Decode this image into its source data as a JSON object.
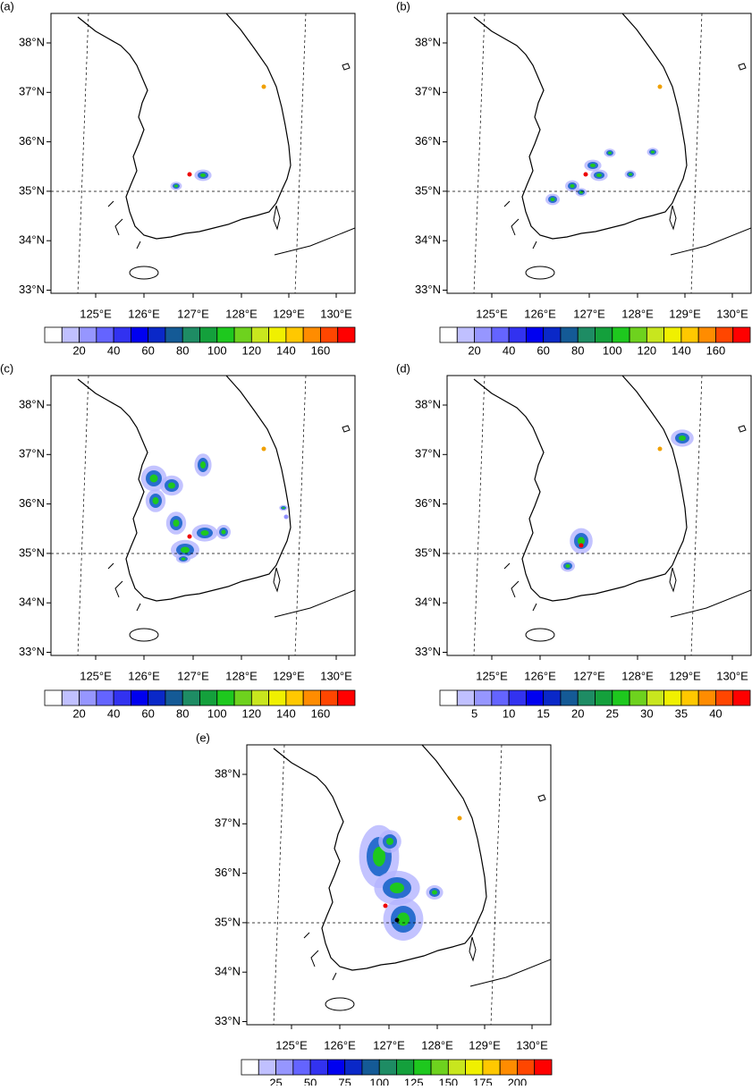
{
  "panels": [
    {
      "label": "(a)",
      "lat_labels": [
        "38°N",
        "37°N",
        "36°N",
        "35°N",
        "34°N",
        "33°N"
      ],
      "lon_labels": [
        "125°E",
        "126°E",
        "127°E",
        "128°E",
        "129°E",
        "130°E"
      ],
      "colorbar": {
        "ticks": [
          20,
          40,
          60,
          80,
          100,
          120,
          140,
          160
        ],
        "colors": [
          "#ffffff",
          "#c0c0ff",
          "#9696ff",
          "#6464ff",
          "#3232f0",
          "#0000f0",
          "#0a28c8",
          "#145a96",
          "#1e8c64",
          "#14a03c",
          "#1ec81e",
          "#6ed21e",
          "#c8e61e",
          "#f0f000",
          "#ffc800",
          "#ff8c00",
          "#ff4600",
          "#ff0000"
        ]
      }
    },
    {
      "label": "(b)",
      "lat_labels": [
        "38°N",
        "37°N",
        "36°N",
        "35°N",
        "34°N",
        "33°N"
      ],
      "lon_labels": [
        "125°E",
        "126°E",
        "127°E",
        "128°E",
        "129°E",
        "130°E"
      ],
      "colorbar": {
        "ticks": [
          20,
          40,
          60,
          80,
          100,
          120,
          140,
          160
        ],
        "colors": [
          "#ffffff",
          "#c0c0ff",
          "#9696ff",
          "#6464ff",
          "#3232f0",
          "#0000f0",
          "#0a28c8",
          "#145a96",
          "#1e8c64",
          "#14a03c",
          "#1ec81e",
          "#6ed21e",
          "#c8e61e",
          "#f0f000",
          "#ffc800",
          "#ff8c00",
          "#ff4600",
          "#ff0000"
        ]
      }
    },
    {
      "label": "(c)",
      "lat_labels": [
        "38°N",
        "37°N",
        "36°N",
        "35°N",
        "34°N",
        "33°N"
      ],
      "lon_labels": [
        "125°E",
        "126°E",
        "127°E",
        "128°E",
        "129°E",
        "130°E"
      ],
      "colorbar": {
        "ticks": [
          20,
          40,
          60,
          80,
          100,
          120,
          140,
          160
        ],
        "colors": [
          "#ffffff",
          "#c0c0ff",
          "#9696ff",
          "#6464ff",
          "#3232f0",
          "#0000f0",
          "#0a28c8",
          "#145a96",
          "#1e8c64",
          "#14a03c",
          "#1ec81e",
          "#6ed21e",
          "#c8e61e",
          "#f0f000",
          "#ffc800",
          "#ff8c00",
          "#ff4600",
          "#ff0000"
        ]
      }
    },
    {
      "label": "(d)",
      "lat_labels": [
        "38°N",
        "37°N",
        "36°N",
        "35°N",
        "34°N",
        "33°N"
      ],
      "lon_labels": [
        "125°E",
        "126°E",
        "127°E",
        "128°E",
        "129°E",
        "130°E"
      ],
      "colorbar": {
        "ticks": [
          5,
          10,
          15,
          20,
          25,
          30,
          35,
          40
        ],
        "colors": [
          "#ffffff",
          "#c0c0ff",
          "#9696ff",
          "#6464ff",
          "#3232f0",
          "#0000f0",
          "#0a28c8",
          "#145a96",
          "#1e8c64",
          "#14a03c",
          "#1ec81e",
          "#6ed21e",
          "#c8e61e",
          "#f0f000",
          "#ffc800",
          "#ff8c00",
          "#ff4600",
          "#ff0000"
        ]
      }
    },
    {
      "label": "(e)",
      "lat_labels": [
        "38°N",
        "37°N",
        "36°N",
        "35°N",
        "34°N",
        "33°N"
      ],
      "lon_labels": [
        "125°E",
        "126°E",
        "127°E",
        "128°E",
        "129°E",
        "130°E"
      ],
      "colorbar": {
        "ticks": [
          25,
          50,
          75,
          100,
          125,
          150,
          175,
          200
        ],
        "colors": [
          "#ffffff",
          "#c0c0ff",
          "#9696ff",
          "#6464ff",
          "#3232f0",
          "#0000f0",
          "#0a28c8",
          "#145a96",
          "#1e8c64",
          "#14a03c",
          "#1ec81e",
          "#6ed21e",
          "#c8e61e",
          "#f0f000",
          "#ffc800",
          "#ff8c00",
          "#ff4600",
          "#ff0000"
        ]
      }
    }
  ]
}
